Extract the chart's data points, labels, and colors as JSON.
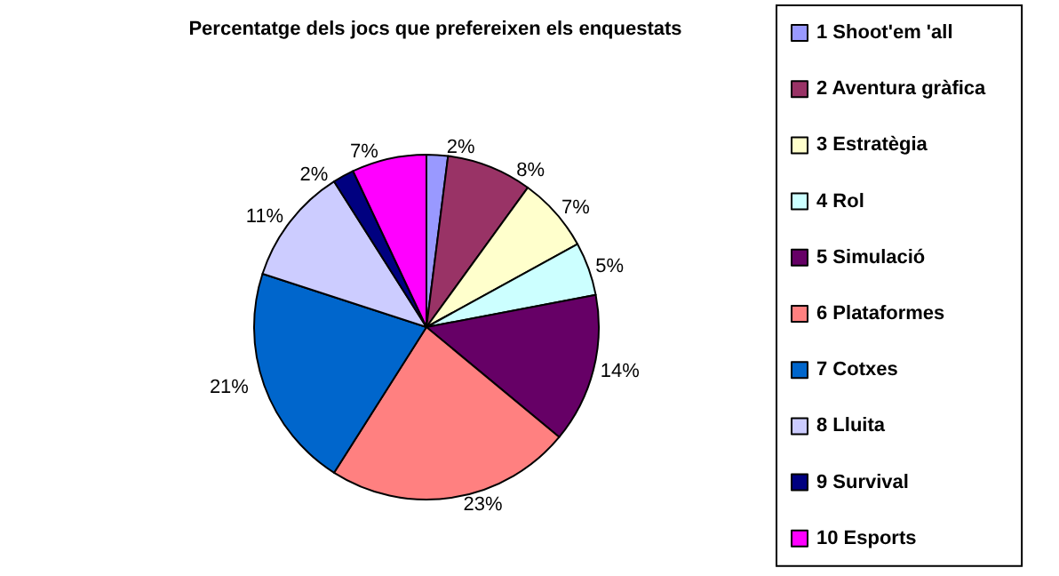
{
  "chart_data": {
    "type": "pie",
    "title": "Percentatge dels jocs que prefereixen els enquestats",
    "categories": [
      "1 Shoot'em 'all",
      "2 Aventura gràfica",
      "3 Estratègia",
      "4 Rol",
      "5 Simulació",
      "6 Plataformes",
      "7 Cotxes",
      "8 Lluita",
      "9 Survival",
      "10 Esports"
    ],
    "values": [
      2,
      8,
      7,
      5,
      14,
      23,
      21,
      11,
      2,
      7
    ],
    "colors": [
      "#9999ff",
      "#993366",
      "#ffffcc",
      "#ccffff",
      "#660066",
      "#ff8080",
      "#0066cc",
      "#ccccff",
      "#000080",
      "#ff00ff"
    ],
    "value_labels": [
      "2%",
      "8%",
      "7%",
      "5%",
      "14%",
      "23%",
      "21%",
      "11%",
      "2%",
      "7%"
    ],
    "legend": "right"
  }
}
